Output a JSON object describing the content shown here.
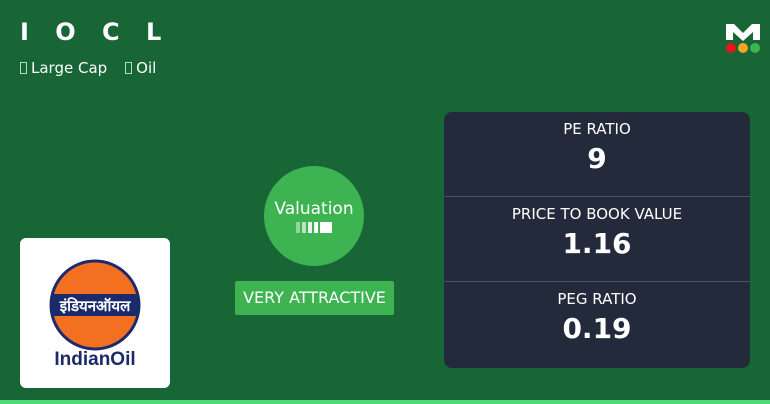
{
  "header": {
    "title": "I O C L",
    "tags": [
      {
        "icon": "tag-icon",
        "label": "Large Cap"
      },
      {
        "icon": "tag-icon",
        "label": "Oil"
      }
    ]
  },
  "brand": {
    "letter": "M",
    "dots": [
      "#e8141c",
      "#f5a623",
      "#3db351"
    ]
  },
  "company_logo": {
    "hindi": "इंडियनऑयल",
    "english": "IndianOil",
    "colors": {
      "orange": "#f37021",
      "navy": "#1b2a6b"
    }
  },
  "valuation": {
    "label": "Valuation",
    "verdict": "VERY ATTRACTIVE",
    "meter_level": 5,
    "meter_max": 5
  },
  "metrics": [
    {
      "label": "PE RATIO",
      "value": "9"
    },
    {
      "label": "PRICE TO BOOK VALUE",
      "value": "1.16"
    },
    {
      "label": "PEG RATIO",
      "value": "0.19"
    }
  ],
  "colors": {
    "background": "#186536",
    "accent": "#3db351",
    "card": "#232a3b"
  }
}
